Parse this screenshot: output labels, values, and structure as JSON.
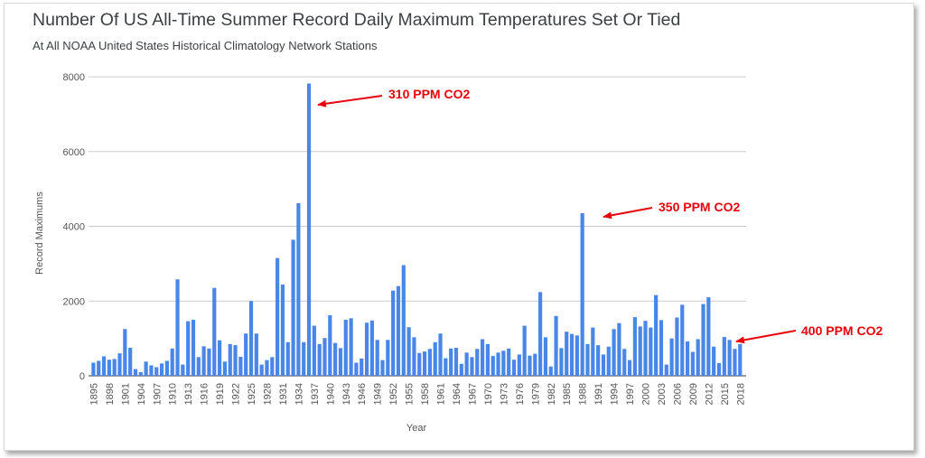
{
  "chart_data": {
    "type": "bar",
    "title": "Number Of US All-Time Summer Record Daily Maximum Temperatures Set Or Tied",
    "subtitle": "At All NOAA United States Historical Climatology Network Stations",
    "xlabel": "Year",
    "ylabel": "Record Maximums",
    "ylim": [
      0,
      8000
    ],
    "yticks": [
      "0",
      "2000",
      "4000",
      "6000",
      "8000"
    ],
    "grid": true,
    "bar_color": "#4a86e8",
    "first_year": 1895,
    "tick_labels": [
      "1895",
      "1898",
      "1901",
      "1904",
      "1907",
      "1910",
      "1913",
      "1916",
      "1919",
      "1922",
      "1925",
      "1928",
      "1931",
      "1934",
      "1937",
      "1940",
      "1943",
      "1946",
      "1949",
      "1952",
      "1955",
      "1958",
      "1961",
      "1964",
      "1967",
      "1970",
      "1973",
      "1976",
      "1979",
      "1982",
      "1985",
      "1988",
      "1991",
      "1994",
      "1997",
      "2000",
      "2003",
      "2006",
      "2009",
      "2012",
      "2015",
      "2018"
    ],
    "values": [
      350,
      400,
      520,
      430,
      450,
      600,
      1250,
      750,
      180,
      100,
      380,
      280,
      230,
      330,
      400,
      730,
      2580,
      300,
      1460,
      1500,
      500,
      790,
      730,
      2350,
      950,
      380,
      850,
      820,
      510,
      1130,
      2000,
      1130,
      300,
      420,
      500,
      3150,
      2440,
      900,
      3640,
      4620,
      900,
      7820,
      1340,
      850,
      1010,
      1620,
      880,
      740,
      1500,
      1540,
      350,
      460,
      1420,
      1480,
      960,
      420,
      960,
      2280,
      2400,
      2960,
      1300,
      1030,
      610,
      650,
      720,
      900,
      1130,
      470,
      730,
      750,
      320,
      620,
      500,
      720,
      980,
      850,
      530,
      620,
      670,
      730,
      430,
      570,
      1340,
      540,
      590,
      2240,
      1030,
      250,
      1600,
      740,
      1180,
      1120,
      1080,
      4350,
      850,
      1290,
      820,
      570,
      780,
      1250,
      1410,
      720,
      420,
      1570,
      1320,
      1470,
      1290,
      2160,
      1490,
      300,
      1000,
      1560,
      1900,
      920,
      640,
      980,
      1920,
      2100,
      780,
      340,
      1040,
      960,
      720,
      850
    ],
    "annotations": [
      {
        "label": "310 PPM CO2",
        "year": 1936
      },
      {
        "label": "350 PPM CO2",
        "year": 1988
      },
      {
        "label": "400 PPM CO2",
        "year": 2018
      }
    ],
    "annotation_color": "#e8000b"
  }
}
